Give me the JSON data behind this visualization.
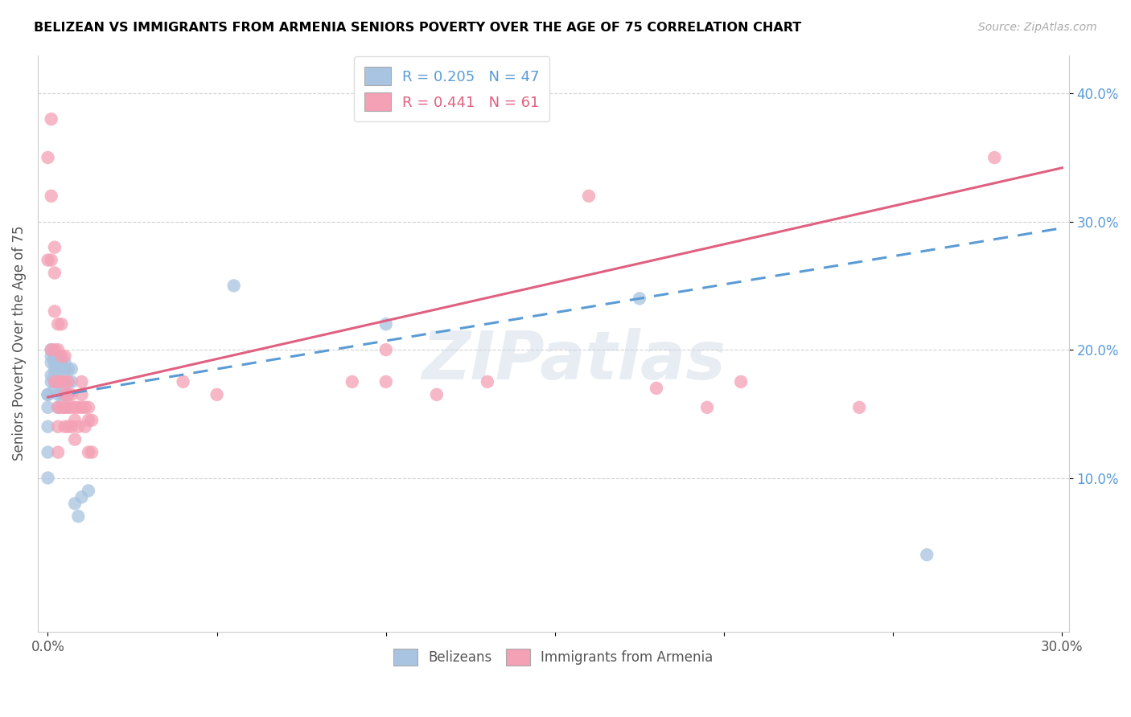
{
  "title": "BELIZEAN VS IMMIGRANTS FROM ARMENIA SENIORS POVERTY OVER THE AGE OF 75 CORRELATION CHART",
  "source": "Source: ZipAtlas.com",
  "ylabel": "Seniors Poverty Over the Age of 75",
  "xlim": [
    -0.003,
    0.302
  ],
  "ylim": [
    -0.02,
    0.43
  ],
  "x_ticks": [
    0.0,
    0.05,
    0.1,
    0.15,
    0.2,
    0.25,
    0.3
  ],
  "x_tick_labels": [
    "0.0%",
    "",
    "",
    "",
    "",
    "",
    "30.0%"
  ],
  "y_ticks": [
    0.1,
    0.2,
    0.3,
    0.4
  ],
  "y_tick_labels": [
    "10.0%",
    "20.0%",
    "30.0%",
    "40.0%"
  ],
  "belizean_R": 0.205,
  "belizean_N": 47,
  "armenia_R": 0.441,
  "armenia_N": 61,
  "belizean_color": "#a8c4e0",
  "armenia_color": "#f4a0b5",
  "belizean_line_color": "#5b9bd5",
  "armenia_line_color": "#e06080",
  "legend_label_1": "Belizeans",
  "legend_label_2": "Immigrants from Armenia",
  "watermark": "ZIPatlas",
  "belizean_x": [
    0.0,
    0.0,
    0.0,
    0.0,
    0.0,
    0.0,
    0.001,
    0.001,
    0.001,
    0.001,
    0.001,
    0.002,
    0.002,
    0.002,
    0.002,
    0.002,
    0.002,
    0.002,
    0.003,
    0.003,
    0.003,
    0.003,
    0.003,
    0.003,
    0.003,
    0.004,
    0.004,
    0.004,
    0.004,
    0.005,
    0.005,
    0.005,
    0.005,
    0.005,
    0.006,
    0.006,
    0.006,
    0.007,
    0.007,
    0.008,
    0.009,
    0.01,
    0.012,
    0.055,
    0.1,
    0.175,
    0.26
  ],
  "belizean_y": [
    0.165,
    0.165,
    0.155,
    0.14,
    0.12,
    0.1,
    0.175,
    0.18,
    0.19,
    0.2,
    0.195,
    0.195,
    0.195,
    0.19,
    0.185,
    0.18,
    0.175,
    0.17,
    0.195,
    0.195,
    0.195,
    0.185,
    0.175,
    0.165,
    0.155,
    0.19,
    0.185,
    0.175,
    0.165,
    0.19,
    0.185,
    0.175,
    0.165,
    0.155,
    0.185,
    0.175,
    0.165,
    0.185,
    0.175,
    0.08,
    0.07,
    0.085,
    0.09,
    0.25,
    0.22,
    0.24,
    0.04
  ],
  "armenia_x": [
    0.0,
    0.0,
    0.001,
    0.001,
    0.001,
    0.001,
    0.002,
    0.002,
    0.002,
    0.002,
    0.002,
    0.003,
    0.003,
    0.003,
    0.003,
    0.003,
    0.003,
    0.004,
    0.004,
    0.004,
    0.004,
    0.005,
    0.005,
    0.005,
    0.005,
    0.005,
    0.006,
    0.006,
    0.006,
    0.006,
    0.007,
    0.007,
    0.007,
    0.008,
    0.008,
    0.008,
    0.009,
    0.009,
    0.01,
    0.01,
    0.01,
    0.011,
    0.011,
    0.012,
    0.012,
    0.012,
    0.013,
    0.013,
    0.04,
    0.05,
    0.09,
    0.1,
    0.1,
    0.115,
    0.13,
    0.16,
    0.18,
    0.195,
    0.205,
    0.24,
    0.28
  ],
  "armenia_y": [
    0.35,
    0.27,
    0.38,
    0.32,
    0.27,
    0.2,
    0.28,
    0.26,
    0.23,
    0.2,
    0.175,
    0.22,
    0.2,
    0.175,
    0.155,
    0.14,
    0.12,
    0.22,
    0.195,
    0.175,
    0.155,
    0.195,
    0.175,
    0.165,
    0.155,
    0.14,
    0.175,
    0.165,
    0.155,
    0.14,
    0.165,
    0.155,
    0.14,
    0.155,
    0.145,
    0.13,
    0.155,
    0.14,
    0.175,
    0.165,
    0.155,
    0.155,
    0.14,
    0.155,
    0.145,
    0.12,
    0.145,
    0.12,
    0.175,
    0.165,
    0.175,
    0.175,
    0.2,
    0.165,
    0.175,
    0.32,
    0.17,
    0.155,
    0.175,
    0.155,
    0.35
  ]
}
